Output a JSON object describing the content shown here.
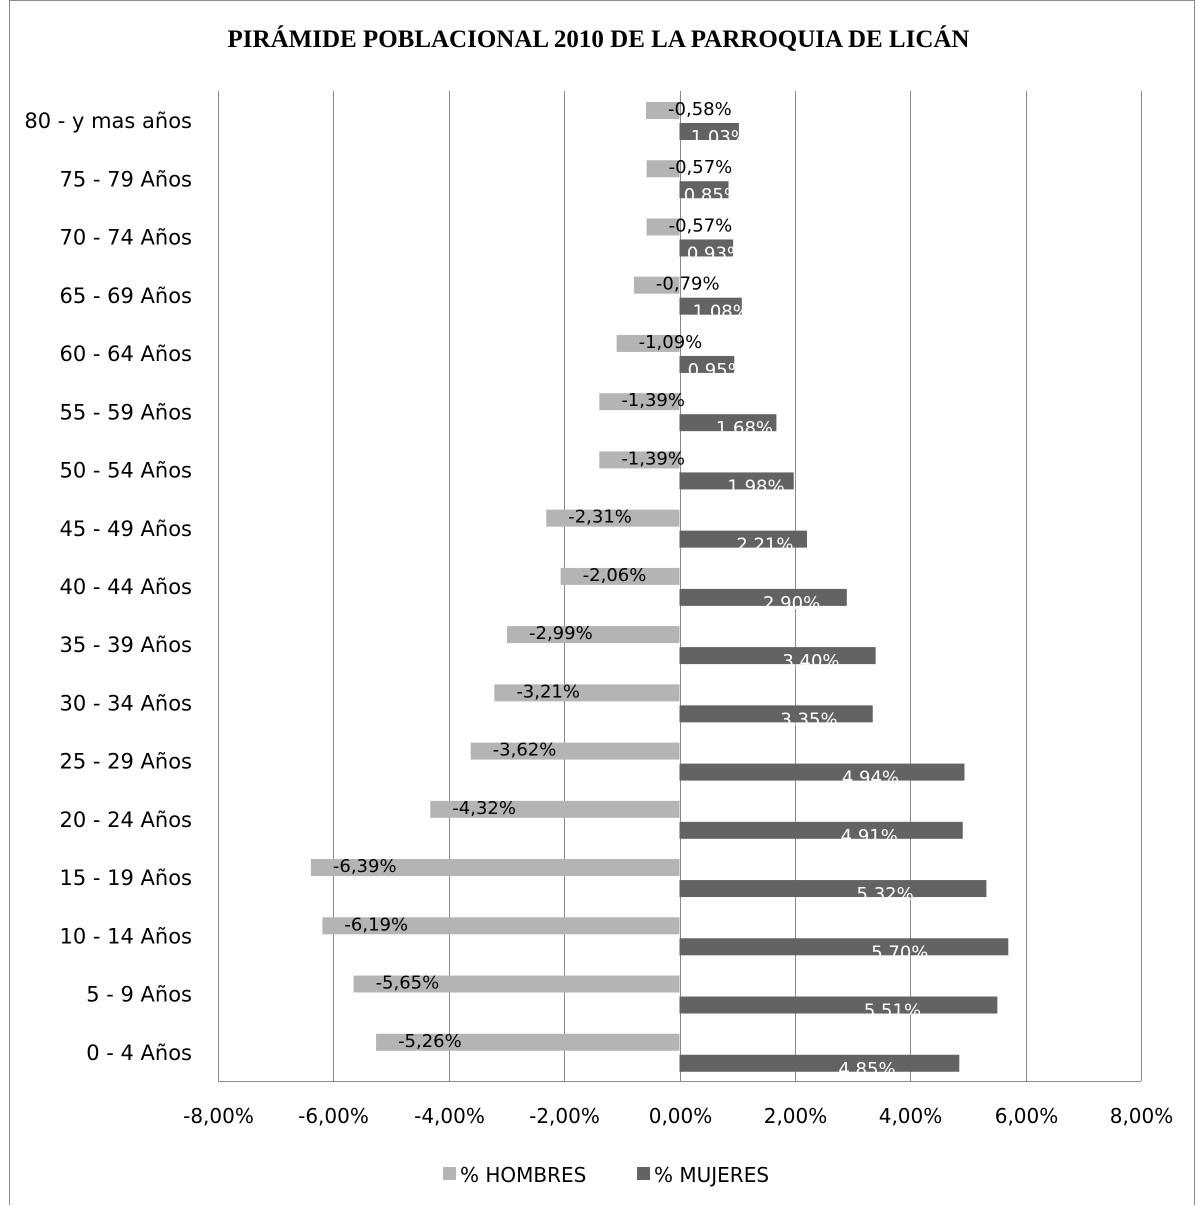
{
  "chart_data": {
    "type": "bar",
    "orientation": "horizontal",
    "title": "PIRÁMIDE POBLACIONAL 2010 DE LA PARROQUIA DE LICÁN",
    "categories": [
      "80 - y mas años",
      "75 - 79 Años",
      "70 - 74 Años",
      "65 - 69 Años",
      "60 - 64 Años",
      "55 - 59 Años",
      "50 - 54 Años",
      "45 - 49 Años",
      "40 - 44 Años",
      "35 - 39 Años",
      "30 - 34 Años",
      "25 - 29 Años",
      "20 - 24 Años",
      "15 - 19 Años",
      "10 - 14 Años",
      "5 - 9 Años",
      "0 - 4 Años"
    ],
    "series": [
      {
        "name": "% HOMBRES",
        "color": "#b4b4b4",
        "values": [
          -0.58,
          -0.57,
          -0.57,
          -0.79,
          -1.09,
          -1.39,
          -1.39,
          -2.31,
          -2.06,
          -2.99,
          -3.21,
          -3.62,
          -4.32,
          -6.39,
          -6.19,
          -5.65,
          -5.26
        ],
        "labels": [
          "-0,58%",
          "-0,57%",
          "-0,57%",
          "-0,79%",
          "-1,09%",
          "-1,39%",
          "-1,39%",
          "-2,31%",
          "-2,06%",
          "-2,99%",
          "-3,21%",
          "-3,62%",
          "-4,32%",
          "-6,39%",
          "-6,19%",
          "-5,65%",
          "-5,26%"
        ]
      },
      {
        "name": "% MUJERES",
        "color": "#636363",
        "values": [
          1.03,
          0.85,
          0.93,
          1.08,
          0.95,
          1.68,
          1.98,
          2.21,
          2.9,
          3.4,
          3.35,
          4.94,
          4.91,
          5.32,
          5.7,
          5.51,
          4.85
        ],
        "labels": [
          "1.03%",
          "0.85%",
          "0.93%",
          "1.08%",
          "0.95%",
          "1.68%",
          "1.98%",
          "2.21%",
          "2.90%",
          "3.40%",
          "3.35%",
          "4.94%",
          "4.91%",
          "5.32%",
          "5.70%",
          "5.51%",
          "4.85%"
        ]
      }
    ],
    "xlim": [
      -8,
      8
    ],
    "xticks": [
      -8,
      -6,
      -4,
      -2,
      0,
      2,
      4,
      6,
      8
    ],
    "xtick_labels": [
      "-8,00%",
      "-6,00%",
      "-4,00%",
      "-2,00%",
      "0,00%",
      "2,00%",
      "4,00%",
      "6,00%",
      "8,00%"
    ],
    "grid": "vertical",
    "legend": "bottom"
  }
}
